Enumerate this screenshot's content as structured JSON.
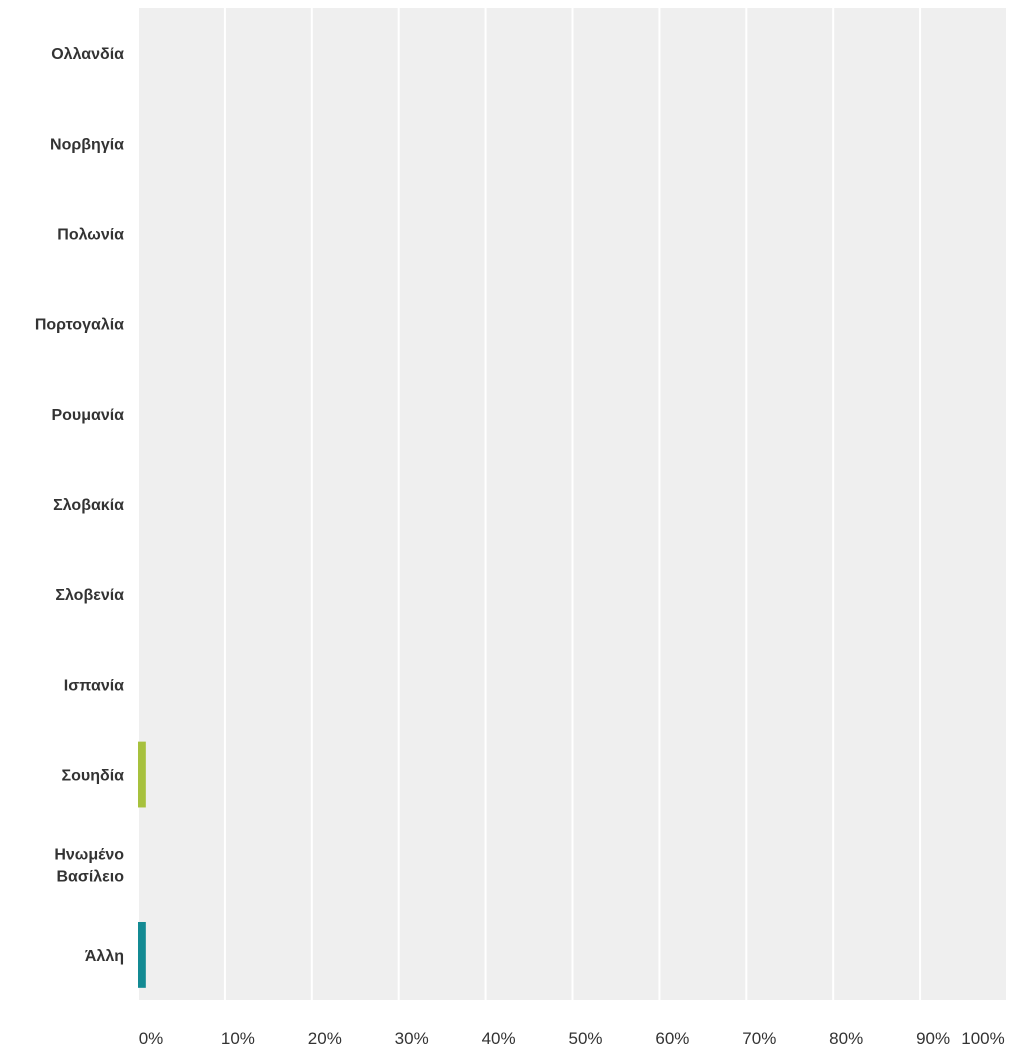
{
  "chart_data": {
    "type": "bar",
    "orientation": "horizontal",
    "categories": [
      [
        "Ολλανδία"
      ],
      [
        "Νορβηγία"
      ],
      [
        "Πολωνία"
      ],
      [
        "Πορτογαλία"
      ],
      [
        "Ρουμανία"
      ],
      [
        "Σλοβακία"
      ],
      [
        "Σλοβενία"
      ],
      [
        "Ισπανία"
      ],
      [
        "Σουηδία"
      ],
      [
        "Ηνωμένο",
        "Βασίλειο"
      ],
      [
        "Άλλη"
      ]
    ],
    "values": [
      0,
      0,
      0,
      0,
      0,
      0,
      0,
      0,
      0.9,
      0,
      0.9
    ],
    "bar_colors": [
      "#c3c3c3",
      "#c3c3c3",
      "#c3c3c3",
      "#c3c3c3",
      "#c3c3c3",
      "#c3c3c3",
      "#c3c3c3",
      "#c3c3c3",
      "#a7c13d",
      "#c3c3c3",
      "#138a93"
    ],
    "x_ticks": [
      "0%",
      "10%",
      "20%",
      "30%",
      "40%",
      "50%",
      "60%",
      "70%",
      "80%",
      "90%",
      "100%"
    ],
    "xlim": [
      0,
      100
    ],
    "grid": true,
    "title": "",
    "xlabel": "",
    "ylabel": "",
    "background_color": "#efefef",
    "grid_color": "#ffffff"
  }
}
